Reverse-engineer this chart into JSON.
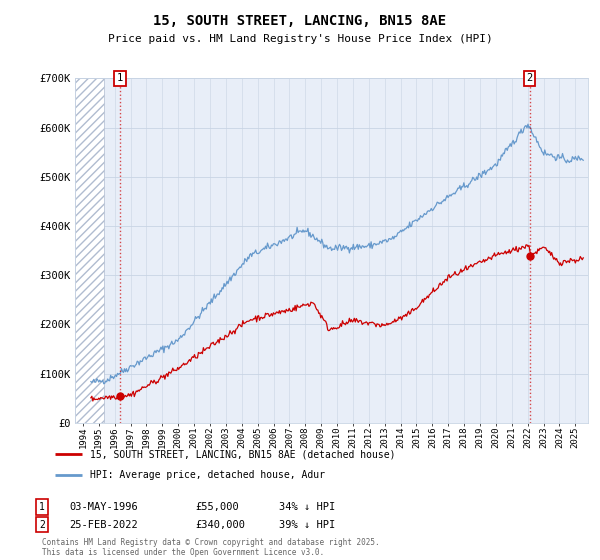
{
  "title": "15, SOUTH STREET, LANCING, BN15 8AE",
  "subtitle": "Price paid vs. HM Land Registry's House Price Index (HPI)",
  "legend_line1": "15, SOUTH STREET, LANCING, BN15 8AE (detached house)",
  "legend_line2": "HPI: Average price, detached house, Adur",
  "footer": "Contains HM Land Registry data © Crown copyright and database right 2025.\nThis data is licensed under the Open Government Licence v3.0.",
  "transaction1_date": "03-MAY-1996",
  "transaction1_price": "£55,000",
  "transaction1_hpi": "34% ↓ HPI",
  "transaction2_date": "25-FEB-2022",
  "transaction2_price": "£340,000",
  "transaction2_hpi": "39% ↓ HPI",
  "red_color": "#cc0000",
  "blue_color": "#6699cc",
  "background_color": "#ffffff",
  "plot_bg_color": "#e8eef8",
  "hatch_color": "#b0bcd0",
  "grid_color": "#c8d4e4",
  "ylim": [
    0,
    700000
  ],
  "yticks": [
    0,
    100000,
    200000,
    300000,
    400000,
    500000,
    600000,
    700000
  ],
  "ytick_labels": [
    "£0",
    "£100K",
    "£200K",
    "£300K",
    "£400K",
    "£500K",
    "£600K",
    "£700K"
  ],
  "xlim_start": 1993.5,
  "xlim_end": 2025.8,
  "marker1_x": 1996.33,
  "marker1_y": 55000,
  "marker2_x": 2022.12,
  "marker2_y": 340000,
  "hatch_end": 1995.3
}
